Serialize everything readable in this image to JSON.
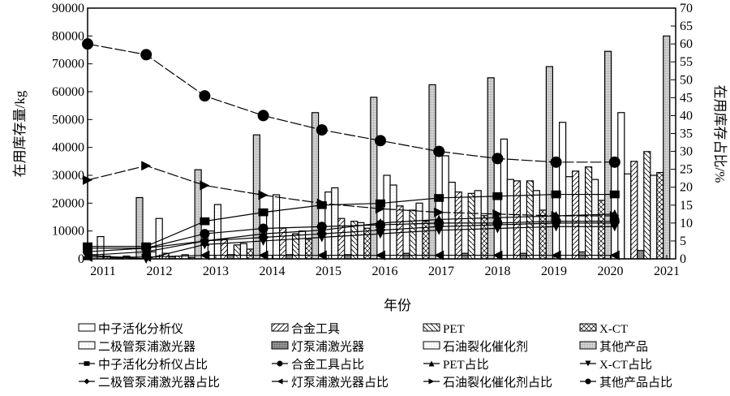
{
  "chart_data": {
    "type": "bar",
    "xlabel": "年份",
    "ylabel": "在用库存量/kg",
    "y2label": "在用库存占比/%",
    "ylim": [
      0,
      90000
    ],
    "y2lim": [
      0,
      70
    ],
    "yticks": [
      "0",
      "10000",
      "20000",
      "30000",
      "40000",
      "50000",
      "60000",
      "70000",
      "80000",
      "90000"
    ],
    "y2ticks": [
      "0",
      "5",
      "10",
      "15",
      "20",
      "25",
      "30",
      "35",
      "40",
      "45",
      "50",
      "55",
      "60",
      "65",
      "70"
    ],
    "xtick_labels": [
      "2011",
      "2012",
      "2013",
      "2014",
      "2015",
      "2016",
      "2017",
      "2018",
      "2019",
      "2020",
      "2021"
    ],
    "categories": [
      "2011",
      "2012",
      "2013",
      "2014",
      "2015",
      "2016",
      "2017",
      "2018",
      "2019",
      "2020"
    ],
    "bar_series": [
      {
        "name": "中子活化分析仪",
        "pattern": "empty",
        "values": [
          1500,
          2500,
          10000,
          17000,
          24000,
          30000,
          37000,
          43000,
          49000,
          52500
        ]
      },
      {
        "name": "二极管泵浦激光器",
        "pattern": "light",
        "values": [
          8000,
          14500,
          19500,
          23000,
          25500,
          26500,
          27500,
          28500,
          29500,
          30500
        ]
      },
      {
        "name": "合金工具",
        "pattern": "diag",
        "values": [
          1000,
          2000,
          7000,
          11000,
          14500,
          19000,
          24000,
          28000,
          31500,
          35000
        ]
      },
      {
        "name": "灯泵浦激光器",
        "pattern": "dark",
        "values": [
          500,
          800,
          1500,
          1500,
          1500,
          2000,
          2000,
          2000,
          2500,
          3000
        ]
      },
      {
        "name": "PET",
        "pattern": "back",
        "values": [
          300,
          1000,
          5000,
          9000,
          13500,
          17500,
          23500,
          28000,
          33000,
          38500
        ]
      },
      {
        "name": "石油裂化催化剂",
        "pattern": "light2",
        "values": [
          1000,
          1500,
          5500,
          10000,
          13000,
          20000,
          24500,
          24500,
          28500,
          30000
        ]
      },
      {
        "name": "X-CT",
        "pattern": "cross",
        "values": [
          200,
          500,
          3500,
          7000,
          11000,
          13500,
          15500,
          17500,
          21000,
          31000
        ]
      },
      {
        "name": "其他产品",
        "pattern": "gray",
        "values": [
          22000,
          32000,
          44500,
          52500,
          58000,
          62500,
          65000,
          69000,
          74500,
          80000
        ]
      }
    ],
    "line_series": [
      {
        "name": "中子活化分析仪占比",
        "marker": "square",
        "values": [
          3.5,
          3.5,
          10.5,
          13,
          15,
          15.5,
          17,
          17.5,
          18,
          18
        ]
      },
      {
        "name": "合金工具占比",
        "marker": "circle",
        "values": [
          2,
          3,
          7,
          8.5,
          9,
          9.5,
          10,
          10,
          10.5,
          10.5
        ]
      },
      {
        "name": "PET占比",
        "marker": "triangle-up",
        "values": [
          1,
          2,
          5,
          7,
          8,
          10,
          11,
          11.5,
          12,
          12.5
        ]
      },
      {
        "name": "X-CT占比",
        "marker": "triangle-down",
        "values": [
          1,
          0,
          4,
          5,
          6,
          7,
          8,
          8.5,
          9,
          9
        ]
      },
      {
        "name": "二极管泵浦激光器占比",
        "marker": "diamond",
        "values": [
          3,
          3,
          5,
          6,
          7,
          8,
          9,
          9.5,
          10,
          10
        ]
      },
      {
        "name": "灯泵浦激光器占比",
        "marker": "triangle-left",
        "values": [
          0.5,
          0.5,
          1,
          1,
          1,
          1,
          1,
          1,
          1,
          1
        ]
      },
      {
        "name": "石油裂化催化剂占比",
        "marker": "triangle-right",
        "values": [
          22,
          26,
          20.5,
          17.8,
          15.5,
          14,
          13,
          12.5,
          12,
          12
        ]
      },
      {
        "name": "其他产品占比",
        "marker": "circle",
        "values": [
          60,
          57,
          45.5,
          40,
          36,
          33,
          30,
          28,
          27,
          27
        ]
      }
    ],
    "legend_position": "bottom",
    "grid": false
  }
}
